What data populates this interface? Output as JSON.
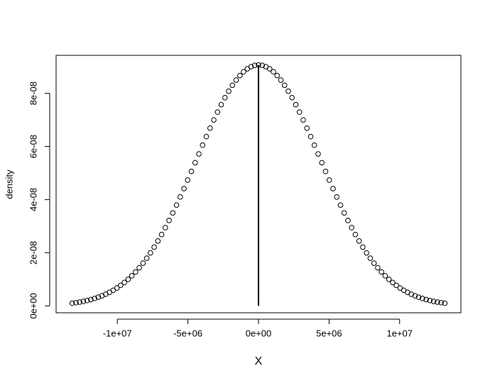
{
  "chart_data": {
    "type": "scatter",
    "xlabel": "X",
    "ylabel": "density",
    "x": [
      -13200000,
      -12936000,
      -12672000,
      -12408000,
      -12144000,
      -11880000,
      -11616000,
      -11352000,
      -11088000,
      -10824000,
      -10560000,
      -10296000,
      -10032000,
      -9768000,
      -9504000,
      -9240000,
      -8976000,
      -8712000,
      -8448000,
      -8184000,
      -7920000,
      -7656000,
      -7392000,
      -7128000,
      -6864000,
      -6600000,
      -6336000,
      -6072000,
      -5808000,
      -5544000,
      -5280000,
      -5016000,
      -4752000,
      -4488000,
      -4224000,
      -3960000,
      -3696000,
      -3432000,
      -3168000,
      -2904000,
      -2640000,
      -2376000,
      -2112000,
      -1848000,
      -1584000,
      -1320000,
      -1056000,
      -792000,
      -528000,
      -264000,
      0,
      264000,
      528000,
      792000,
      1056000,
      1320000,
      1584000,
      1848000,
      2112000,
      2376000,
      2640000,
      2904000,
      3168000,
      3432000,
      3696000,
      3960000,
      4224000,
      4488000,
      4752000,
      5016000,
      5280000,
      5544000,
      5808000,
      6072000,
      6336000,
      6600000,
      6864000,
      7128000,
      7392000,
      7656000,
      7920000,
      8184000,
      8448000,
      8712000,
      8976000,
      9240000,
      9504000,
      9768000,
      10032000,
      10296000,
      10560000,
      10824000,
      11088000,
      11352000,
      11616000,
      11880000,
      12144000,
      12408000,
      12672000,
      12936000,
      13200000
    ],
    "values": [
      1.007e-09,
      1.204e-09,
      1.434e-09,
      1.701e-09,
      2.011e-09,
      2.369e-09,
      2.781e-09,
      3.251e-09,
      3.788e-09,
      4.399e-09,
      5.089e-09,
      5.867e-09,
      6.739e-09,
      7.712e-09,
      8.796e-09,
      9.996e-09,
      1.132e-08,
      1.277e-08,
      1.435e-08,
      1.608e-08,
      1.794e-08,
      1.995e-08,
      2.211e-08,
      2.441e-08,
      2.685e-08,
      2.944e-08,
      3.215e-08,
      3.499e-08,
      3.794e-08,
      4.099e-08,
      4.413e-08,
      4.734e-08,
      5.06e-08,
      5.389e-08,
      5.719e-08,
      6.047e-08,
      6.371e-08,
      6.689e-08,
      6.997e-08,
      7.292e-08,
      7.573e-08,
      7.837e-08,
      8.08e-08,
      8.302e-08,
      8.498e-08,
      8.668e-08,
      8.81e-08,
      8.921e-08,
      9.002e-08,
      9.051e-08,
      9.067e-08,
      9.051e-08,
      9.002e-08,
      8.921e-08,
      8.81e-08,
      8.668e-08,
      8.498e-08,
      8.302e-08,
      8.08e-08,
      7.837e-08,
      7.573e-08,
      7.292e-08,
      6.997e-08,
      6.689e-08,
      6.371e-08,
      6.047e-08,
      5.719e-08,
      5.389e-08,
      5.06e-08,
      4.734e-08,
      4.413e-08,
      4.099e-08,
      3.794e-08,
      3.499e-08,
      3.215e-08,
      2.944e-08,
      2.685e-08,
      2.441e-08,
      2.211e-08,
      1.995e-08,
      1.794e-08,
      1.608e-08,
      1.435e-08,
      1.277e-08,
      1.132e-08,
      9.996e-09,
      8.796e-09,
      7.712e-09,
      6.739e-09,
      5.867e-09,
      5.089e-09,
      4.399e-09,
      3.788e-09,
      3.251e-09,
      2.781e-09,
      2.369e-09,
      2.011e-09,
      1.701e-09,
      1.434e-09,
      1.204e-09,
      1.007e-09
    ],
    "color": "#000000",
    "segment": {
      "x": 0,
      "y0": 0,
      "y1": 9.067e-08
    },
    "xlim": [
      -14340000,
      14340000
    ],
    "xticks": [
      {
        "value": -10000000,
        "label": "-1e+07"
      },
      {
        "value": -5000000,
        "label": "-5e+06"
      },
      {
        "value": 0,
        "label": "0e+00"
      },
      {
        "value": 5000000,
        "label": "5e+06"
      },
      {
        "value": 10000000,
        "label": "1e+07"
      }
    ],
    "ylim": [
      -2.6e-09,
      9.43e-08
    ],
    "yticks": [
      {
        "value": 0,
        "label": "0e+00"
      },
      {
        "value": 2e-08,
        "label": "2e-08"
      },
      {
        "value": 4e-08,
        "label": "4e-08"
      },
      {
        "value": 6e-08,
        "label": "6e-08"
      },
      {
        "value": 8e-08,
        "label": "8e-08"
      }
    ]
  }
}
